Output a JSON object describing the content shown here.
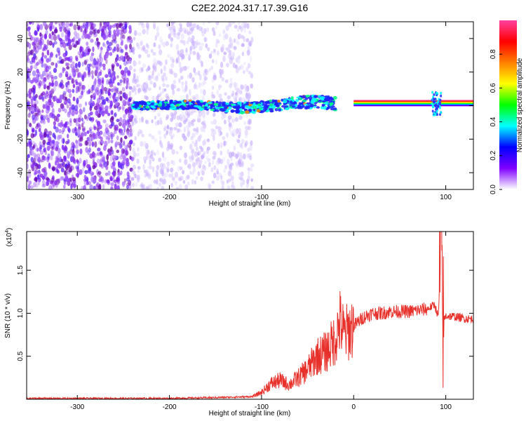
{
  "title": "C2E2.2024.317.17.39.G16",
  "chart_data": [
    {
      "type": "heatmap",
      "xlabel": "Height of straight line (km)",
      "ylabel": "Frequency (Hz)",
      "xlim": [
        -355,
        130
      ],
      "ylim": [
        -50,
        50
      ],
      "x_ticks": [
        -300,
        -200,
        -100,
        0,
        100
      ],
      "x_tick_labels": [
        "-300",
        "-200",
        "-100",
        "0",
        "100"
      ],
      "y_ticks": [
        -40,
        -20,
        0,
        20,
        40
      ],
      "y_tick_labels": [
        "-40",
        "-20",
        "0",
        "20",
        "40"
      ],
      "colorbar": {
        "label": "Normalized spectral amplitude",
        "range": [
          0,
          1
        ],
        "ticks": [
          0.0,
          0.2,
          0.4,
          0.6,
          0.8
        ],
        "tick_labels": [
          "0.0",
          "0.2",
          "0.4",
          "0.6",
          "0.8"
        ],
        "colors": [
          "#ffffff",
          "#8000ff",
          "#0000ff",
          "#00ffff",
          "#00ff00",
          "#ffff00",
          "#ff8000",
          "#ff0000",
          "#ff40a0"
        ]
      },
      "regions": [
        {
          "x_from": -355,
          "x_to": -240,
          "description": "dense purple noise",
          "amplitude": 0.2
        },
        {
          "x_from": -240,
          "x_to": -110,
          "description": "sparse light noise",
          "amplitude": 0.08
        },
        {
          "x_from": -240,
          "x_to": -20,
          "description": "signal band near 0 Hz",
          "amplitude": 0.45
        },
        {
          "x_from": 0,
          "x_to": 130,
          "description": "strong line near 0-3 Hz",
          "amplitude": 1.0
        },
        {
          "x_from": 85,
          "x_to": 95,
          "description": "spread feature",
          "amplitude": 0.5
        }
      ],
      "grid": false
    },
    {
      "type": "line",
      "xlabel": "Height of straight line (km)",
      "ylabel": "SNR (10 * v/v)",
      "y_scale_label": "(x10",
      "y_scale_exp": "4",
      "y_scale_close": ")",
      "xlim": [
        -355,
        130
      ],
      "ylim": [
        0,
        1.95
      ],
      "x_ticks": [
        -300,
        -200,
        -100,
        0,
        100
      ],
      "x_tick_labels": [
        "-300",
        "-200",
        "-100",
        "0",
        "100"
      ],
      "y_ticks": [
        0.5,
        1.0,
        1.5
      ],
      "y_tick_labels": [
        "0.5",
        "1.0",
        "1.5"
      ],
      "series": [
        {
          "color": "#e8302a",
          "x": [
            -355,
            -300,
            -250,
            -200,
            -150,
            -110,
            -100,
            -90,
            -80,
            -70,
            -60,
            -50,
            -40,
            -30,
            -20,
            -15,
            -10,
            0,
            10,
            20,
            30,
            40,
            60,
            80,
            88,
            92,
            95,
            97,
            100,
            110,
            120,
            130
          ],
          "y": [
            0.01,
            0.01,
            0.01,
            0.01,
            0.02,
            0.03,
            0.08,
            0.18,
            0.22,
            0.17,
            0.25,
            0.35,
            0.5,
            0.55,
            0.7,
            0.9,
            0.75,
            0.85,
            0.95,
            1.0,
            1.0,
            1.02,
            1.02,
            1.05,
            1.1,
            0.95,
            1.9,
            0.9,
            0.97,
            0.96,
            0.94,
            0.93
          ]
        }
      ],
      "grid": false
    }
  ]
}
